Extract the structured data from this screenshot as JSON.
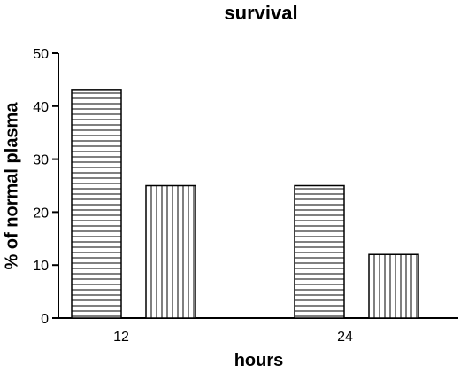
{
  "chart_data": {
    "type": "bar",
    "title": "survival",
    "xlabel": "hours",
    "ylabel": "% of normal plasma",
    "categories": [
      "12",
      "24"
    ],
    "series": [
      {
        "values": [
          43,
          25
        ],
        "pattern": "horizontal-hatch"
      },
      {
        "values": [
          25,
          12
        ],
        "pattern": "vertical-hatch"
      }
    ],
    "ylim": [
      0,
      50
    ],
    "yticks": [
      0,
      10,
      20,
      30,
      40,
      50
    ],
    "grid": false,
    "legend": "none"
  }
}
